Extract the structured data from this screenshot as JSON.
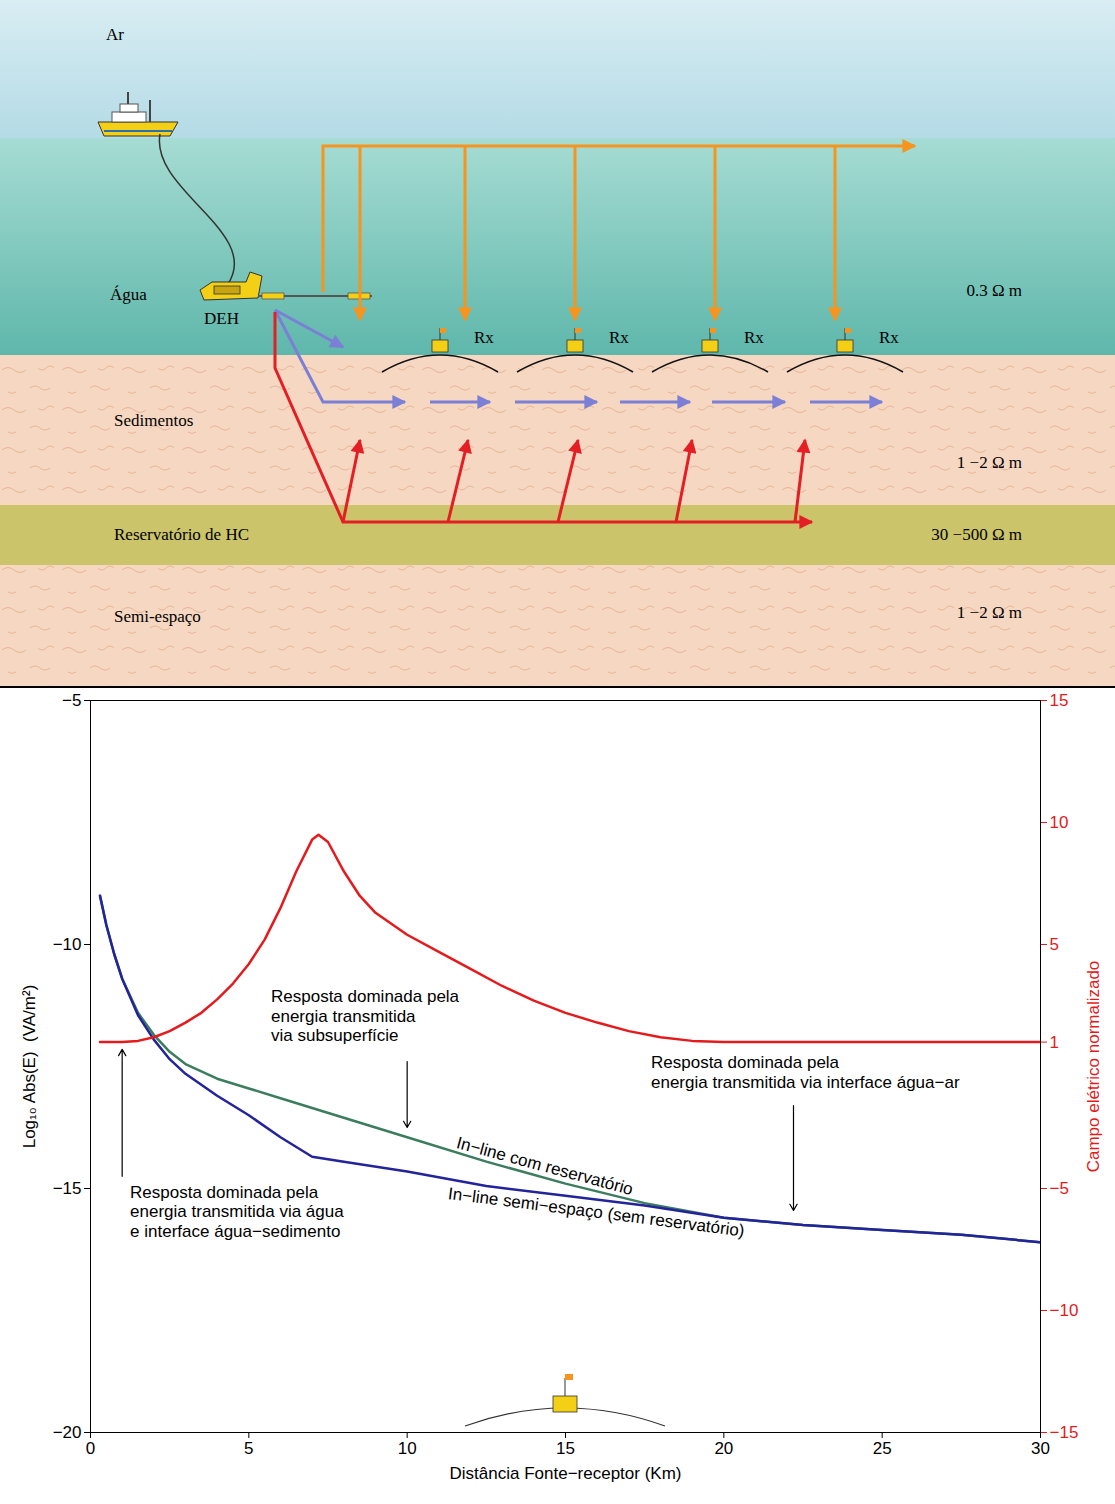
{
  "diagram": {
    "layers": [
      {
        "name": "Ar"
      },
      {
        "name": "Água",
        "resistivity": "0.3 Ω m"
      },
      {
        "name": "Sedimentos",
        "resistivity": "1 −2 Ω m"
      },
      {
        "name": "Reservatório de HC",
        "resistivity": "30 −500 Ω m"
      },
      {
        "name": "Semi-espaço",
        "resistivity": "1 −2 Ω m"
      }
    ],
    "source": "DEH",
    "receivers": [
      "Rx",
      "Rx",
      "Rx",
      "Rx"
    ]
  },
  "chart_data": {
    "type": "line",
    "xlabel": "Distância Fonte−receptor (Km)",
    "ylabel": "Log₁₀ Abs(E)  (VA/m²)",
    "y2label": "Campo elétrico normalizado",
    "xlim": [
      0,
      30
    ],
    "xticks": [
      0,
      5,
      10,
      15,
      20,
      25,
      30
    ],
    "ylim": [
      -20,
      -5
    ],
    "yticks": [
      -20,
      -15,
      -10,
      -5
    ],
    "y2lim": [
      -15,
      15
    ],
    "y2ticks": [
      -15,
      -10,
      -5,
      1,
      5,
      10,
      15
    ],
    "series": [
      {
        "name": "In−line com reservatório",
        "color": "#3b7d5e",
        "x": [
          0.3,
          0.5,
          0.75,
          1,
          1.5,
          2,
          2.5,
          3,
          4,
          5,
          6,
          7,
          8,
          10,
          12.5,
          15,
          17.5,
          20,
          22.5,
          25,
          27.5,
          30
        ],
        "values": [
          -9.0,
          -9.6,
          -10.2,
          -10.7,
          -11.4,
          -11.85,
          -12.2,
          -12.45,
          -12.75,
          -12.95,
          -13.15,
          -13.35,
          -13.55,
          -13.95,
          -14.45,
          -14.9,
          -15.3,
          -15.6,
          -15.75,
          -15.85,
          -15.95,
          -16.1
        ]
      },
      {
        "name": "In−line semi−espaço (sem reservatório)",
        "color": "#23239b",
        "x": [
          0.3,
          0.5,
          0.75,
          1,
          1.5,
          2,
          2.5,
          3,
          4,
          5,
          6,
          7,
          8,
          10,
          12.5,
          15,
          17.5,
          20,
          22.5,
          25,
          27.5,
          30
        ],
        "values": [
          -9.0,
          -9.6,
          -10.2,
          -10.7,
          -11.45,
          -11.95,
          -12.35,
          -12.65,
          -13.1,
          -13.5,
          -13.95,
          -14.35,
          -14.45,
          -14.65,
          -14.95,
          -15.15,
          -15.35,
          -15.6,
          -15.75,
          -15.85,
          -15.95,
          -16.1
        ]
      },
      {
        "color": "#e41a1c",
        "axis": "y2",
        "x": [
          0.3,
          1,
          1.5,
          2,
          2.5,
          3,
          3.5,
          4,
          4.5,
          5,
          5.5,
          6,
          6.5,
          7,
          7.2,
          7.5,
          8,
          8.5,
          9,
          10,
          11,
          12,
          13,
          14,
          15,
          16,
          17,
          18,
          19,
          20,
          21,
          25,
          30
        ],
        "values": [
          1,
          1,
          1.05,
          1.2,
          1.45,
          1.8,
          2.2,
          2.75,
          3.4,
          4.2,
          5.2,
          6.5,
          8.0,
          9.3,
          9.5,
          9.2,
          8.0,
          7.0,
          6.3,
          5.4,
          4.7,
          4.0,
          3.3,
          2.7,
          2.2,
          1.8,
          1.45,
          1.2,
          1.05,
          1,
          1,
          1,
          1
        ]
      }
    ],
    "annotations": [
      "Resposta dominada pela\nenergia transmitida\nvia subsuperfície",
      "Resposta dominada pela\nenergia transmitida via interface água−ar",
      "Resposta dominada pela\nenergia transmitida via água\ne interface água−sedimento"
    ]
  }
}
